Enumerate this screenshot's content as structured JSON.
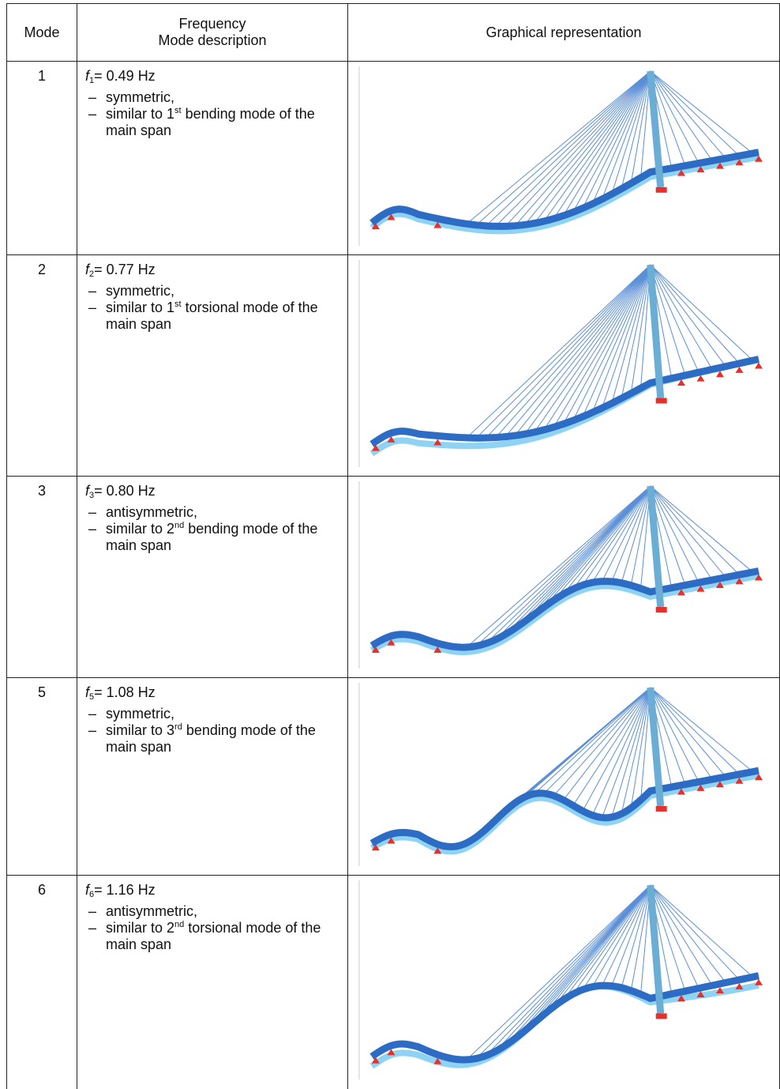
{
  "header": {
    "mode": "Mode",
    "frequency": "Frequency",
    "description": "Mode description",
    "graphic": "Graphical representation"
  },
  "bullet": "–",
  "rows": [
    {
      "mode": "1",
      "symbol": "f",
      "index": "1",
      "value": "= 0.49 Hz",
      "items": [
        {
          "text": "symmetric,"
        },
        {
          "text": "similar to 1",
          "sup": "st",
          "rest": " bending mode of the main span"
        }
      ]
    },
    {
      "mode": "2",
      "symbol": "f",
      "index": "2",
      "value": "= 0.77 Hz",
      "items": [
        {
          "text": "symmetric,"
        },
        {
          "text": "similar to 1",
          "sup": "st",
          "rest": " torsional mode of the main span"
        }
      ]
    },
    {
      "mode": "3",
      "symbol": "f",
      "index": "3",
      "value": "= 0.80 Hz",
      "items": [
        {
          "text": "antisymmetric,"
        },
        {
          "text": "similar to 2",
          "sup": "nd",
          "rest": " bending mode of the main span"
        }
      ]
    },
    {
      "mode": "5",
      "symbol": "f",
      "index": "5",
      "value": "= 1.08 Hz",
      "items": [
        {
          "text": "symmetric,"
        },
        {
          "text": "similar to 3",
          "sup": "rd",
          "rest": " bending mode of the main span"
        }
      ]
    },
    {
      "mode": "6",
      "symbol": "f",
      "index": "6",
      "value": "= 1.16 Hz",
      "items": [
        {
          "text": "antisymmetric,"
        },
        {
          "text": "similar to 2",
          "sup": "nd",
          "rest": " torsional mode of the main span"
        }
      ]
    }
  ]
}
